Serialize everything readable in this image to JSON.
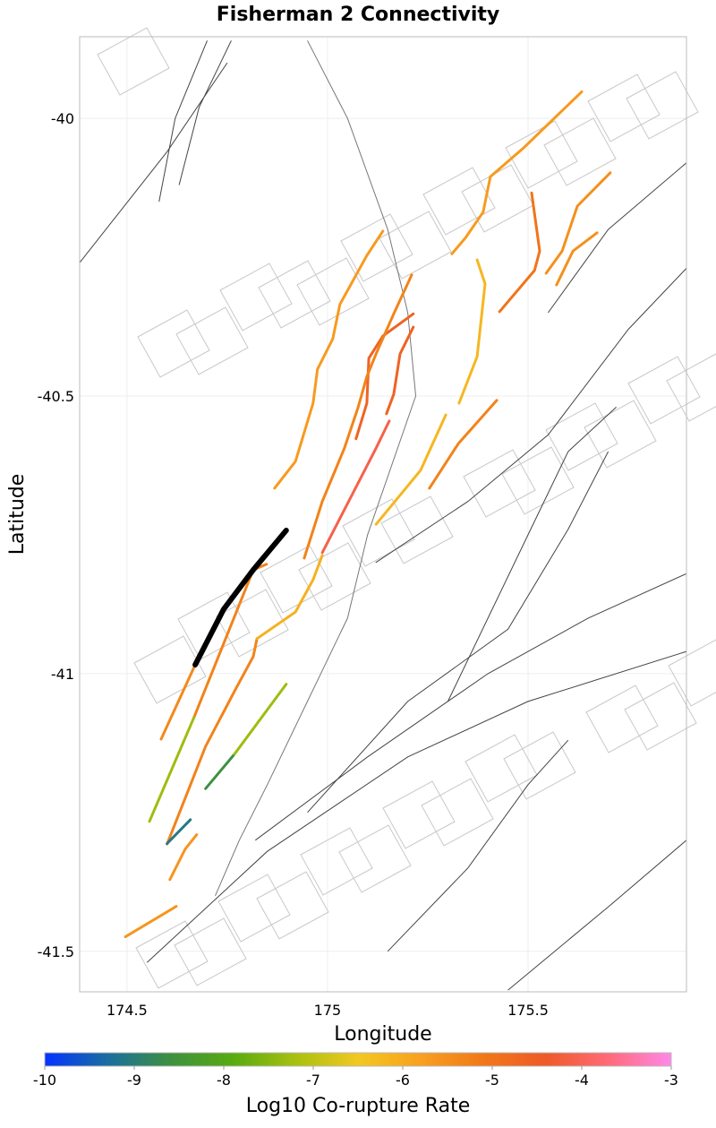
{
  "chart_data": {
    "type": "line",
    "title": "Fisherman 2 Connectivity",
    "xlabel": "Longitude",
    "ylabel": "Latitude",
    "xlim": [
      174.382,
      175.895
    ],
    "ylim": [
      -41.573,
      -39.853
    ],
    "xticks": [
      174.5,
      175,
      175.5
    ],
    "xtick_labels": [
      "174.5",
      "175",
      "175.5"
    ],
    "yticks": [
      -40,
      -40.5,
      -41,
      -41.5
    ],
    "ytick_labels": [
      "-40",
      "-40.5",
      "-41",
      "-41.5"
    ],
    "grid": true,
    "colorbar": {
      "label": "Log10 Co-rupture Rate",
      "range": [
        -10,
        -3
      ],
      "ticks": [
        "-10",
        "-9",
        "-8",
        "-7",
        "-6",
        "-5",
        "-4",
        "-3"
      ],
      "colors": [
        "#0433ff",
        "#1a6ea0",
        "#3e9040",
        "#58aa10",
        "#a8c010",
        "#f2c820",
        "#f8a020",
        "#f07818",
        "#ef5a28",
        "#ff6b78",
        "#ff88e8"
      ]
    },
    "source_fault": {
      "name": "Fisherman 2",
      "color": "#000000",
      "points": [
        [
          174.67,
          -40.984
        ],
        [
          174.741,
          -40.884
        ],
        [
          174.815,
          -40.813
        ],
        [
          174.897,
          -40.742
        ]
      ]
    },
    "connected_faults": [
      {
        "rate": -5.4,
        "points": [
          [
            174.585,
            -41.118
          ],
          [
            174.67,
            -40.984
          ]
        ]
      },
      {
        "rate": -5.3,
        "points": [
          [
            174.6,
            -41.307
          ],
          [
            174.696,
            -41.131
          ],
          [
            174.77,
            -41.029
          ],
          [
            174.815,
            -40.969
          ],
          [
            174.824,
            -40.937
          ]
        ]
      },
      {
        "rate": -5.3,
        "points": [
          [
            174.667,
            -41.079
          ],
          [
            174.815,
            -40.813
          ],
          [
            174.848,
            -40.803
          ]
        ]
      },
      {
        "rate": -7.3,
        "points": [
          [
            174.556,
            -41.266
          ],
          [
            174.667,
            -41.079
          ]
        ]
      },
      {
        "rate": -5.6,
        "points": [
          [
            174.607,
            -41.371
          ],
          [
            174.645,
            -41.316
          ],
          [
            174.674,
            -41.29
          ]
        ]
      },
      {
        "rate": -5.6,
        "points": [
          [
            174.496,
            -41.474
          ],
          [
            174.623,
            -41.419
          ]
        ]
      },
      {
        "rate": -9.1,
        "points": [
          [
            174.6,
            -41.306
          ],
          [
            174.658,
            -41.263
          ]
        ]
      },
      {
        "rate": -8.6,
        "points": [
          [
            174.696,
            -41.207
          ],
          [
            174.768,
            -41.145
          ]
        ]
      },
      {
        "rate": -7.3,
        "points": [
          [
            174.768,
            -41.145
          ],
          [
            174.897,
            -41.019
          ]
        ]
      },
      {
        "rate": -6.1,
        "points": [
          [
            174.824,
            -40.937
          ],
          [
            174.92,
            -40.889
          ],
          [
            174.964,
            -40.831
          ],
          [
            174.987,
            -40.787
          ]
        ]
      },
      {
        "rate": -4.1,
        "points": [
          [
            174.987,
            -40.782
          ],
          [
            175.121,
            -40.594
          ],
          [
            175.154,
            -40.545
          ]
        ]
      },
      {
        "rate": -4.6,
        "points": [
          [
            175.071,
            -40.577
          ],
          [
            175.098,
            -40.513
          ],
          [
            175.103,
            -40.432
          ],
          [
            175.138,
            -40.392
          ],
          [
            175.214,
            -40.352
          ]
        ]
      },
      {
        "rate": -4.6,
        "points": [
          [
            175.147,
            -40.532
          ],
          [
            175.165,
            -40.497
          ],
          [
            175.181,
            -40.424
          ],
          [
            175.214,
            -40.376
          ]
        ]
      },
      {
        "rate": -5.3,
        "points": [
          [
            174.942,
            -40.792
          ],
          [
            174.987,
            -40.69
          ],
          [
            175.042,
            -40.594
          ],
          [
            175.076,
            -40.521
          ],
          [
            175.098,
            -40.465
          ],
          [
            175.121,
            -40.424
          ],
          [
            175.165,
            -40.352
          ],
          [
            175.21,
            -40.282
          ]
        ]
      },
      {
        "rate": -5.7,
        "points": [
          [
            174.868,
            -40.666
          ],
          [
            174.92,
            -40.618
          ],
          [
            174.964,
            -40.513
          ],
          [
            174.975,
            -40.452
          ],
          [
            175.013,
            -40.397
          ],
          [
            175.031,
            -40.335
          ],
          [
            175.098,
            -40.247
          ],
          [
            175.138,
            -40.203
          ]
        ]
      },
      {
        "rate": -6.2,
        "points": [
          [
            175.121,
            -40.731
          ],
          [
            175.232,
            -40.634
          ],
          [
            175.295,
            -40.534
          ]
        ]
      },
      {
        "rate": -5.3,
        "points": [
          [
            175.254,
            -40.666
          ],
          [
            175.326,
            -40.586
          ],
          [
            175.422,
            -40.508
          ]
        ]
      },
      {
        "rate": -6.2,
        "points": [
          [
            175.328,
            -40.513
          ],
          [
            175.373,
            -40.429
          ],
          [
            175.393,
            -40.298
          ],
          [
            175.373,
            -40.255
          ]
        ]
      },
      {
        "rate": -5.7,
        "points": [
          [
            175.31,
            -40.244
          ],
          [
            175.344,
            -40.215
          ],
          [
            175.388,
            -40.169
          ],
          [
            175.406,
            -40.105
          ],
          [
            175.489,
            -40.053
          ],
          [
            175.634,
            -39.952
          ]
        ]
      },
      {
        "rate": -5.0,
        "points": [
          [
            175.429,
            -40.348
          ],
          [
            175.516,
            -40.274
          ],
          [
            175.529,
            -40.239
          ],
          [
            175.509,
            -40.134
          ]
        ]
      },
      {
        "rate": -5.5,
        "points": [
          [
            175.545,
            -40.279
          ],
          [
            175.585,
            -40.239
          ],
          [
            175.623,
            -40.158
          ],
          [
            175.705,
            -40.098
          ]
        ]
      },
      {
        "rate": -5.5,
        "points": [
          [
            175.571,
            -40.3
          ],
          [
            175.612,
            -40.239
          ],
          [
            175.672,
            -40.206
          ]
        ]
      }
    ],
    "other_faults": [
      [
        [
          174.382,
          -40.26
        ],
        [
          174.6,
          -40.06
        ],
        [
          174.75,
          -39.9
        ]
      ],
      [
        [
          174.58,
          -40.15
        ],
        [
          174.62,
          -40.0
        ],
        [
          174.7,
          -39.86
        ]
      ],
      [
        [
          174.63,
          -40.12
        ],
        [
          174.68,
          -39.98
        ],
        [
          174.76,
          -39.86
        ]
      ],
      [
        [
          175.12,
          -40.8
        ],
        [
          175.35,
          -40.69
        ],
        [
          175.55,
          -40.57
        ],
        [
          175.75,
          -40.38
        ],
        [
          175.895,
          -40.27
        ]
      ],
      [
        [
          174.95,
          -41.25
        ],
        [
          175.2,
          -41.05
        ],
        [
          175.45,
          -40.92
        ],
        [
          175.6,
          -40.74
        ],
        [
          175.7,
          -40.6
        ]
      ],
      [
        [
          174.82,
          -41.3
        ],
        [
          175.1,
          -41.15
        ],
        [
          175.4,
          -41.0
        ],
        [
          175.65,
          -40.9
        ],
        [
          175.895,
          -40.82
        ]
      ],
      [
        [
          174.55,
          -41.52
        ],
        [
          174.85,
          -41.32
        ],
        [
          175.2,
          -41.15
        ],
        [
          175.5,
          -41.05
        ],
        [
          175.895,
          -40.96
        ]
      ],
      [
        [
          175.15,
          -41.5
        ],
        [
          175.35,
          -41.35
        ],
        [
          175.5,
          -41.2
        ],
        [
          175.6,
          -41.12
        ]
      ],
      [
        [
          175.45,
          -41.57
        ],
        [
          175.7,
          -41.42
        ],
        [
          175.895,
          -41.3
        ]
      ],
      [
        [
          175.3,
          -41.05
        ],
        [
          175.5,
          -40.75
        ],
        [
          175.6,
          -40.6
        ],
        [
          175.72,
          -40.52
        ]
      ],
      [
        [
          175.55,
          -40.35
        ],
        [
          175.7,
          -40.2
        ],
        [
          175.895,
          -40.08
        ]
      ]
    ],
    "coastline": [
      [
        174.95,
        -39.86
      ],
      [
        175.05,
        -40.0
      ],
      [
        175.15,
        -40.2
      ],
      [
        175.2,
        -40.35
      ],
      [
        175.22,
        -40.5
      ],
      [
        175.1,
        -40.75
      ],
      [
        175.05,
        -40.9
      ],
      [
        174.95,
        -41.05
      ],
      [
        174.85,
        -41.2
      ],
      [
        174.78,
        -41.3
      ],
      [
        174.72,
        -41.4
      ]
    ]
  }
}
